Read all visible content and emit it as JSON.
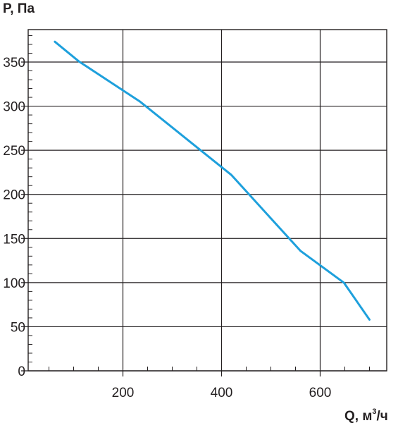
{
  "chart_data": {
    "type": "line",
    "ylabel": "P, Па",
    "xlabel_prefix": "Q, м",
    "xlabel_superscript": "3",
    "xlabel_suffix": "/ч",
    "xlim": [
      0,
      710
    ],
    "ylim": [
      0,
      380
    ],
    "xticks": [
      200,
      400,
      600
    ],
    "yticks": [
      0,
      50,
      100,
      150,
      200,
      250,
      300,
      350
    ],
    "grid": true,
    "colors": {
      "line": "#1ea0dc",
      "axis": "#231f20"
    },
    "series": [
      {
        "x": [
          62,
          110,
          235,
          420,
          560,
          648,
          700
        ],
        "y": [
          373,
          351,
          305,
          222,
          136,
          100,
          58
        ]
      }
    ]
  }
}
